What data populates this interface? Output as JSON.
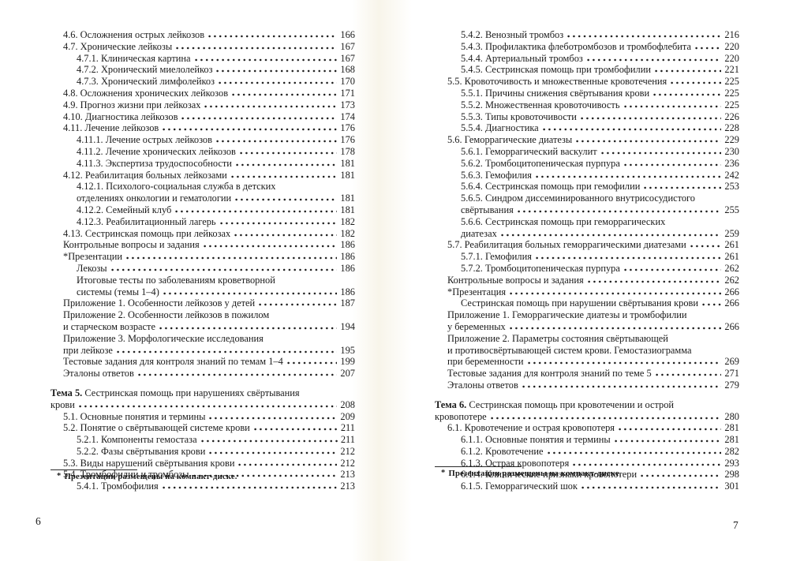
{
  "colors": {
    "text": "#1b1b1b",
    "background": "#ffffff"
  },
  "left_page": {
    "number": "6",
    "footnote": {
      "marker": "*",
      "text": "Презентации размещены на компакт-диске."
    },
    "rows": [
      {
        "l": 1,
        "t": "4.6. Осложнения острых лейкозов",
        "p": "166"
      },
      {
        "l": 1,
        "t": "4.7. Хронические лейкозы",
        "p": "167"
      },
      {
        "l": 2,
        "t": "4.7.1. Клиническая картина",
        "p": "167"
      },
      {
        "l": 2,
        "t": "4.7.2. Хронический миелолейкоз",
        "p": "168"
      },
      {
        "l": 2,
        "t": "4.7.3. Хронический лимфолейкоз",
        "p": "170"
      },
      {
        "l": 1,
        "t": "4.8. Осложнения хронических лейкозов",
        "p": "171"
      },
      {
        "l": 1,
        "t": "4.9. Прогноз жизни при лейкозах",
        "p": "173"
      },
      {
        "l": 1,
        "t": "4.10. Диагностика лейкозов",
        "p": "174"
      },
      {
        "l": 1,
        "t": "4.11. Лечение лейкозов",
        "p": "176"
      },
      {
        "l": 2,
        "t": "4.11.1. Лечение острых лейкозов",
        "p": "176"
      },
      {
        "l": 2,
        "t": "4.11.2. Лечение хронических лейкозов",
        "p": "178"
      },
      {
        "l": 2,
        "t": "4.11.3. Экспертиза трудоспособности",
        "p": "181"
      },
      {
        "l": 1,
        "t": "4.12. Реабилитация больных лейкозами",
        "p": "181"
      },
      {
        "l": 2,
        "t": "4.12.1. Психолого-социальная служба в детских"
      },
      {
        "l": 2,
        "t": "отделениях онкологии и гематологии",
        "p": "181"
      },
      {
        "l": 2,
        "t": "4.12.2. Семейный клуб",
        "p": "181"
      },
      {
        "l": 2,
        "t": "4.12.3. Реабилитационный лагерь",
        "p": "182"
      },
      {
        "l": 1,
        "t": "4.13. Сестринская помощь при лейкозах",
        "p": "182"
      },
      {
        "l": 1,
        "t": "Контрольные вопросы и задания",
        "p": "186"
      },
      {
        "l": 1,
        "t": "*Презентации",
        "p": "186"
      },
      {
        "l": 2,
        "t": "Лекозы",
        "p": "186"
      },
      {
        "l": 2,
        "t": "Итоговые тесты по заболеваниям кроветворной"
      },
      {
        "l": 2,
        "t": "системы (темы 1–4)",
        "p": "186"
      },
      {
        "l": 1,
        "t": "Приложение 1. Особенности лейкозов у детей",
        "p": "187"
      },
      {
        "l": 1,
        "t": "Приложение 2. Особенности лейкозов в пожилом"
      },
      {
        "l": 1,
        "t": "и старческом возрасте",
        "p": "194"
      },
      {
        "l": 1,
        "t": "Приложение 3. Морфологические исследования"
      },
      {
        "l": 1,
        "t": "при лейкозе",
        "p": "195"
      },
      {
        "l": 1,
        "t": "Тестовые задания для контроля знаний по темам 1–4",
        "p": "199"
      },
      {
        "l": 1,
        "t": "Эталоны ответов",
        "p": "207"
      },
      {
        "l": 0,
        "b": "Тема 5.",
        "t": "Сестринская помощь при нарушениях свёртывания",
        "gap": true
      },
      {
        "l": 0,
        "t": "крови",
        "p": "208"
      },
      {
        "l": 1,
        "t": "5.1. Основные понятия и термины",
        "p": "209"
      },
      {
        "l": 1,
        "t": "5.2. Понятие о свёртывающей системе крови",
        "p": "211"
      },
      {
        "l": 2,
        "t": "5.2.1. Компоненты гемостаза",
        "p": "211"
      },
      {
        "l": 2,
        "t": "5.2.2. Фазы свёртывания крови",
        "p": "212"
      },
      {
        "l": 1,
        "t": "5.3. Виды нарушений свёртывания крови",
        "p": "212"
      },
      {
        "l": 1,
        "t": "5.4. Тромбофилии и тромбозы",
        "p": "213"
      },
      {
        "l": 2,
        "t": "5.4.1. Тромбофилия",
        "p": "213"
      }
    ]
  },
  "right_page": {
    "number": "7",
    "footnote": {
      "marker": "*",
      "text": "Презентации размещены на компакт-диске."
    },
    "rows": [
      {
        "l": 2,
        "t": "5.4.2. Венозный тромбоз",
        "p": "216"
      },
      {
        "l": 2,
        "t": "5.4.3. Профилактика флеботромбозов и тромбофлебита",
        "p": "220"
      },
      {
        "l": 2,
        "t": "5.4.4. Артериальный тромбоз",
        "p": "220"
      },
      {
        "l": 2,
        "t": "5.4.5. Сестринская помощь при тромбофилии",
        "p": "221"
      },
      {
        "l": 1,
        "t": "5.5. Кровоточивость и множественные кровотечения",
        "p": "225"
      },
      {
        "l": 2,
        "t": "5.5.1. Причины снижения свёртывания крови",
        "p": "225"
      },
      {
        "l": 2,
        "t": "5.5.2. Множественная кровоточивость",
        "p": "225"
      },
      {
        "l": 2,
        "t": "5.5.3. Типы кровоточивости",
        "p": "226"
      },
      {
        "l": 2,
        "t": "5.5.4. Диагностика",
        "p": "228"
      },
      {
        "l": 1,
        "t": "5.6. Геморрагические диатезы",
        "p": "229"
      },
      {
        "l": 2,
        "t": "5.6.1. Геморрагический васкулит",
        "p": "230"
      },
      {
        "l": 2,
        "t": "5.6.2. Тромбоцитопеническая пурпура",
        "p": "236"
      },
      {
        "l": 2,
        "t": "5.6.3. Гемофилия",
        "p": "242"
      },
      {
        "l": 2,
        "t": "5.6.4. Сестринская помощь при гемофилии",
        "p": "253"
      },
      {
        "l": 2,
        "t": "5.6.5. Синдром диссеминированного внутрисосудистого"
      },
      {
        "l": 2,
        "t": "свёртывания",
        "p": "255"
      },
      {
        "l": 2,
        "t": "5.6.6. Сестринская помощь при геморрагических"
      },
      {
        "l": 2,
        "t": "диатезах",
        "p": "259"
      },
      {
        "l": 1,
        "t": "5.7. Реабилитация больных геморрагическими диатезами",
        "p": "261"
      },
      {
        "l": 2,
        "t": "5.7.1. Гемофилия",
        "p": "261"
      },
      {
        "l": 2,
        "t": "5.7.2. Тромбоцитопеническая пурпура",
        "p": "262"
      },
      {
        "l": 1,
        "t": "Контрольные вопросы и задания",
        "p": "262"
      },
      {
        "l": 1,
        "t": "*Презентация",
        "p": "266"
      },
      {
        "l": 2,
        "t": "Сестринская помощь при нарушении свёртывания крови",
        "p": "266"
      },
      {
        "l": 1,
        "t": "Приложение 1. Геморрагические диатезы и тромбофилии"
      },
      {
        "l": 1,
        "t": "у беременных",
        "p": "266"
      },
      {
        "l": 1,
        "t": "Приложение 2. Параметры состояния свёртывающей"
      },
      {
        "l": 1,
        "t": "и противосвёртывающей систем крови. Гемостазиограмма"
      },
      {
        "l": 1,
        "t": "при беременности",
        "p": "269"
      },
      {
        "l": 1,
        "t": "Тестовые задания для контроля знаний по теме 5",
        "p": "271"
      },
      {
        "l": 1,
        "t": "Эталоны ответов",
        "p": "279"
      },
      {
        "l": 0,
        "b": "Тема 6.",
        "t": "Сестринская помощь при кровотечении и острой",
        "gap": true
      },
      {
        "l": 0,
        "t": "кровопотере",
        "p": "280"
      },
      {
        "l": 1,
        "t": "6.1. Кровотечение и острая кровопотеря",
        "p": "281"
      },
      {
        "l": 2,
        "t": "6.1.1. Основные понятия и термины",
        "p": "281"
      },
      {
        "l": 2,
        "t": "6.1.2. Кровотечение",
        "p": "282"
      },
      {
        "l": 2,
        "t": "6.1.3. Острая кровопотеря",
        "p": "293"
      },
      {
        "l": 2,
        "t": "6.1.4. Клинические признаки кровопотери",
        "p": "298"
      },
      {
        "l": 2,
        "t": "6.1.5. Геморрагический шок",
        "p": "301"
      }
    ]
  }
}
